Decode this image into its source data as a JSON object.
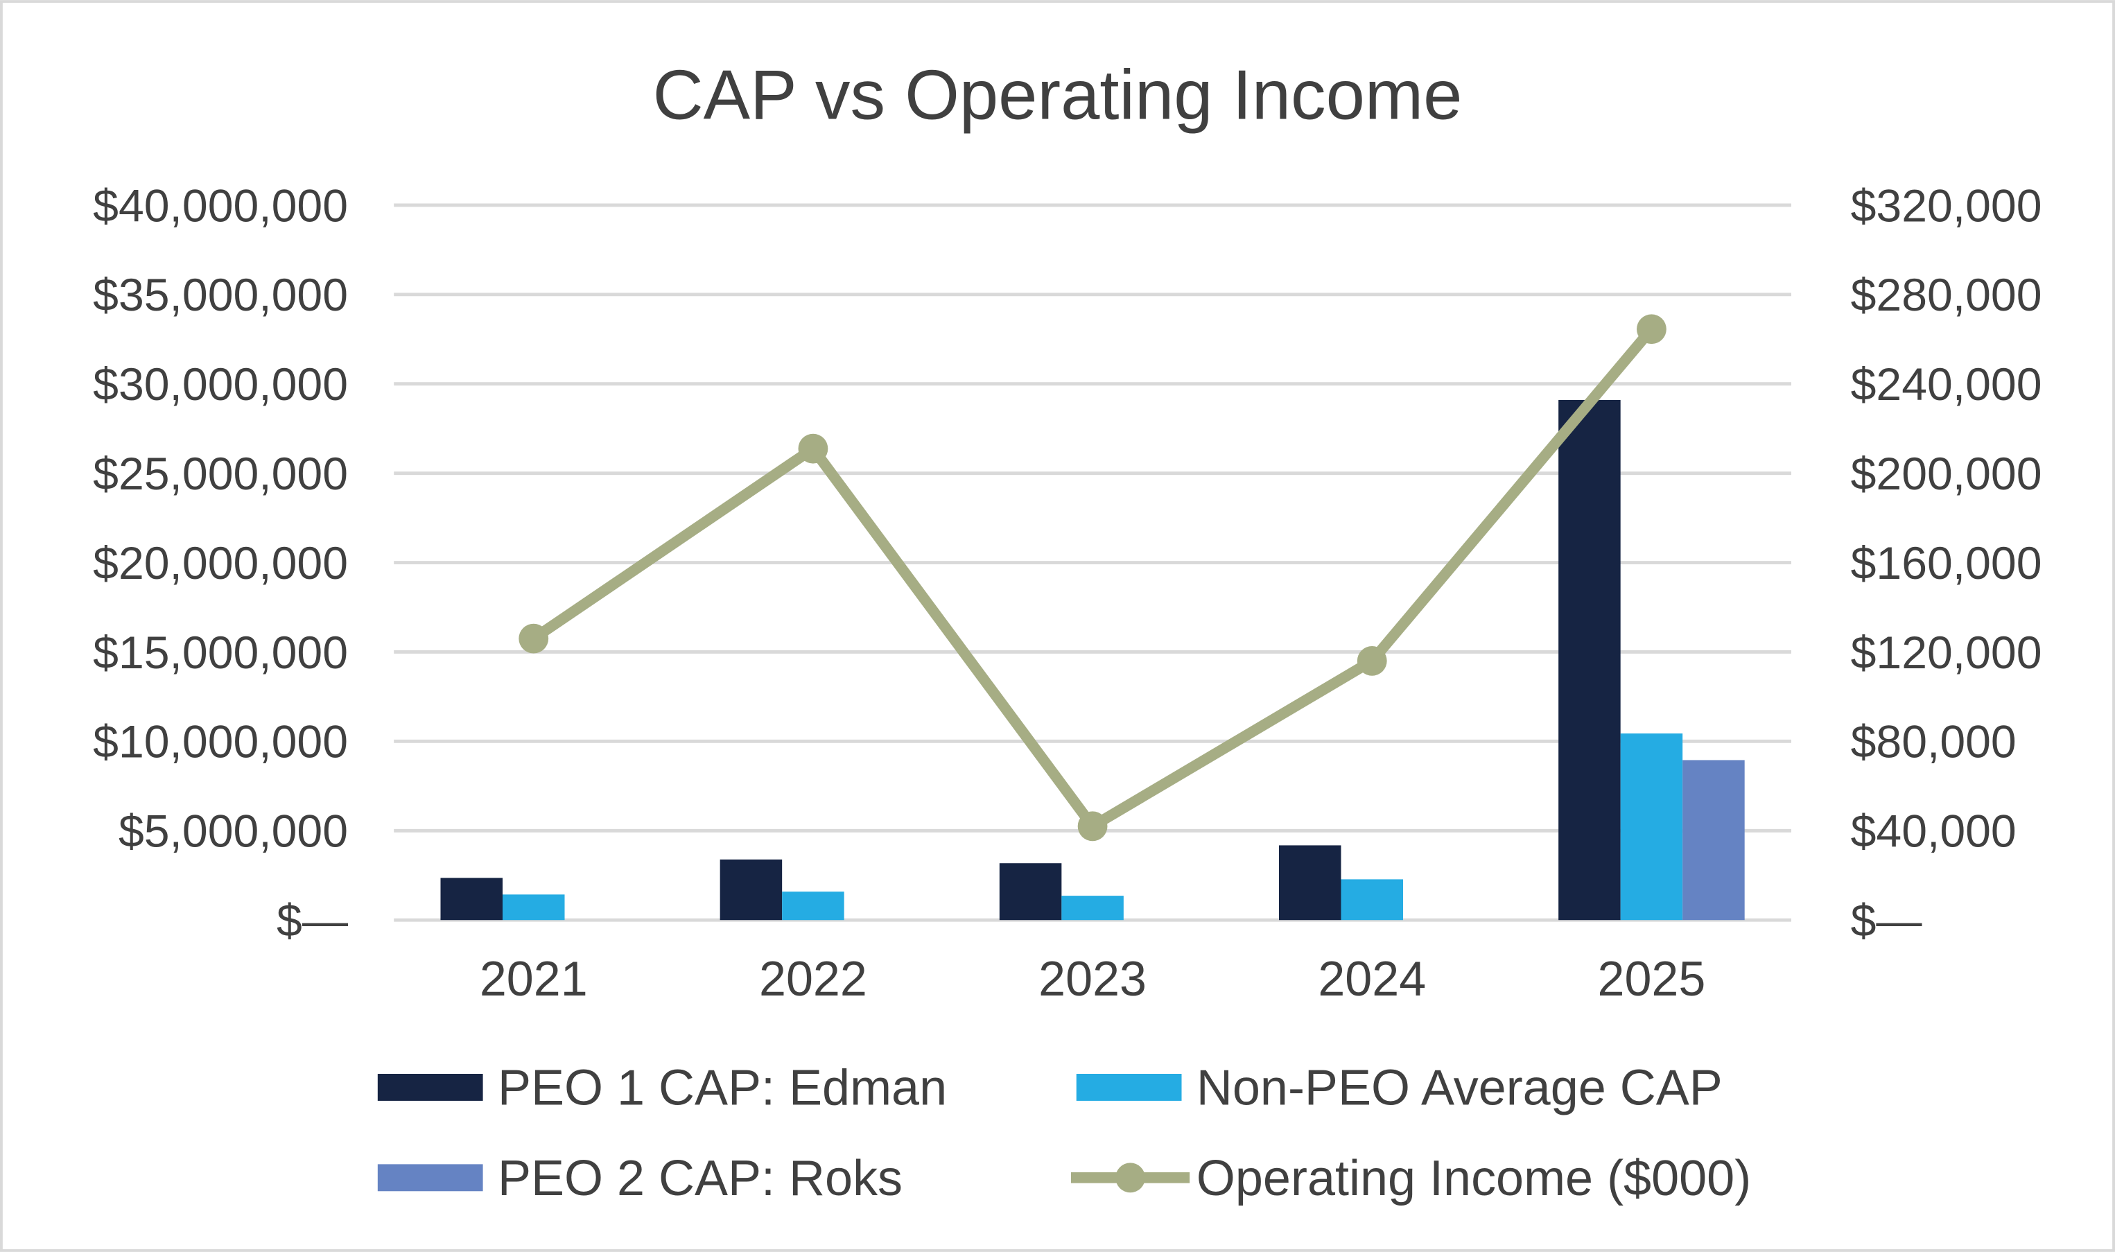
{
  "chart_data": {
    "type": "bar",
    "title": "CAP vs Operating Income",
    "categories": [
      "2021",
      "2022",
      "2023",
      "2024",
      "2025"
    ],
    "y_left": {
      "range": [
        0,
        40000000
      ],
      "ticks": [
        0,
        5000000,
        10000000,
        15000000,
        20000000,
        25000000,
        30000000,
        35000000,
        40000000
      ],
      "tick_labels": [
        "$—",
        "$5,000,000",
        "$10,000,000",
        "$15,000,000",
        "$20,000,000",
        "$25,000,000",
        "$30,000,000",
        "$35,000,000",
        "$40,000,000"
      ]
    },
    "y_right": {
      "range": [
        0,
        320000
      ],
      "ticks": [
        0,
        40000,
        80000,
        120000,
        160000,
        200000,
        240000,
        280000,
        320000
      ],
      "tick_labels": [
        "$—",
        "$40,000",
        "$80,000",
        "$120,000",
        "$160,000",
        "$200,000",
        "$240,000",
        "$280,000",
        "$320,000"
      ]
    },
    "grid": true,
    "legend_position": "bottom",
    "series": [
      {
        "name": "PEO 1 CAP: Edman",
        "type": "bar",
        "axis": "left",
        "color": "#162443",
        "values": [
          2360000,
          3390000,
          3180000,
          4180000,
          29100000
        ]
      },
      {
        "name": "Non-PEO Average CAP",
        "type": "bar",
        "axis": "left",
        "color": "#25ACE3",
        "values": [
          1430000,
          1590000,
          1360000,
          2280000,
          10440000
        ]
      },
      {
        "name": "PEO 2 CAP: Roks",
        "type": "bar",
        "axis": "left",
        "color": "#6583C3",
        "values": [
          null,
          null,
          null,
          null,
          8950000
        ]
      },
      {
        "name": "Operating Income ($000)",
        "type": "line",
        "axis": "right",
        "color": "#A6AD84",
        "values": [
          126000,
          211000,
          42000,
          116000,
          264500
        ]
      }
    ]
  }
}
